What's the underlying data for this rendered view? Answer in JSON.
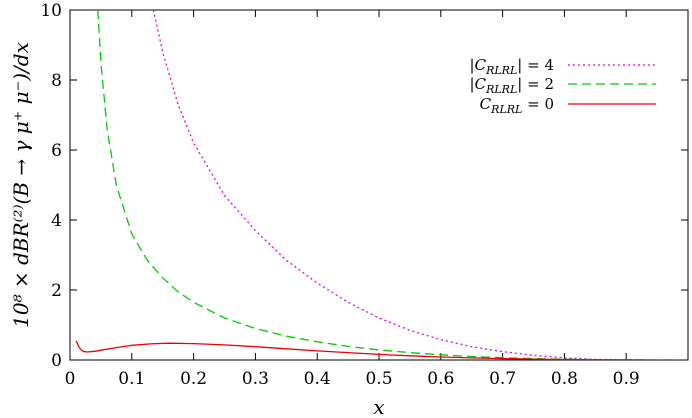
{
  "chart_data": {
    "type": "line",
    "xlabel": "x",
    "ylabel": "10⁸ × dBR⁽²⁾(B → γ μ⁺ μ⁻)/dx",
    "xlim": [
      0,
      1.0
    ],
    "ylim": [
      0,
      10
    ],
    "xticks": [
      0,
      0.1,
      0.2,
      0.3,
      0.4,
      0.5,
      0.6,
      0.7,
      0.8,
      0.9
    ],
    "xtick_labels": [
      "0",
      "0.1",
      "0.2",
      "0.3",
      "0.4",
      "0.5",
      "0.6",
      "0.7",
      "0.8",
      "0.9"
    ],
    "yticks": [
      0,
      2,
      4,
      6,
      8,
      10
    ],
    "ytick_labels": [
      "0",
      "2",
      "4",
      "6",
      "8",
      "10"
    ],
    "legend_position": "top-right",
    "grid": false,
    "series": [
      {
        "name": "|C_RLRL| = 4",
        "color": "#e000e0",
        "dash": "dotted",
        "x": [
          0.135,
          0.15,
          0.175,
          0.2,
          0.25,
          0.3,
          0.35,
          0.4,
          0.45,
          0.5,
          0.55,
          0.6,
          0.65,
          0.7,
          0.75,
          0.8,
          0.85,
          0.9,
          0.95,
          0.985
        ],
        "y": [
          10.0,
          8.8,
          7.3,
          6.2,
          4.7,
          3.7,
          2.85,
          2.2,
          1.65,
          1.2,
          0.85,
          0.58,
          0.38,
          0.24,
          0.13,
          0.06,
          0.02,
          0.005,
          0.0,
          0.0
        ]
      },
      {
        "name": "|C_RLRL| = 2",
        "color": "#00cc00",
        "dash": "dashed",
        "x": [
          0.045,
          0.05,
          0.06,
          0.075,
          0.1,
          0.125,
          0.15,
          0.175,
          0.2,
          0.25,
          0.3,
          0.35,
          0.4,
          0.45,
          0.5,
          0.55,
          0.6,
          0.65,
          0.7,
          0.75,
          0.8,
          0.85,
          0.9,
          0.95,
          0.985
        ],
        "y": [
          10.0,
          8.5,
          6.6,
          5.0,
          3.6,
          2.85,
          2.35,
          1.95,
          1.65,
          1.2,
          0.9,
          0.68,
          0.52,
          0.39,
          0.29,
          0.21,
          0.15,
          0.1,
          0.065,
          0.04,
          0.02,
          0.01,
          0.003,
          0.0,
          0.0
        ]
      },
      {
        "name": "C_RLRL = 0",
        "color": "#ee0000",
        "dash": "solid",
        "x": [
          0.01,
          0.015,
          0.02,
          0.025,
          0.03,
          0.04,
          0.05,
          0.07,
          0.1,
          0.13,
          0.16,
          0.2,
          0.25,
          0.3,
          0.35,
          0.4,
          0.45,
          0.5,
          0.55,
          0.6,
          0.65,
          0.7,
          0.75,
          0.8,
          0.85,
          0.9,
          0.95,
          0.985
        ],
        "y": [
          0.55,
          0.35,
          0.26,
          0.23,
          0.23,
          0.25,
          0.28,
          0.34,
          0.42,
          0.46,
          0.48,
          0.47,
          0.43,
          0.38,
          0.32,
          0.26,
          0.21,
          0.16,
          0.12,
          0.085,
          0.06,
          0.04,
          0.025,
          0.013,
          0.006,
          0.002,
          0.0,
          0.0
        ]
      }
    ]
  }
}
